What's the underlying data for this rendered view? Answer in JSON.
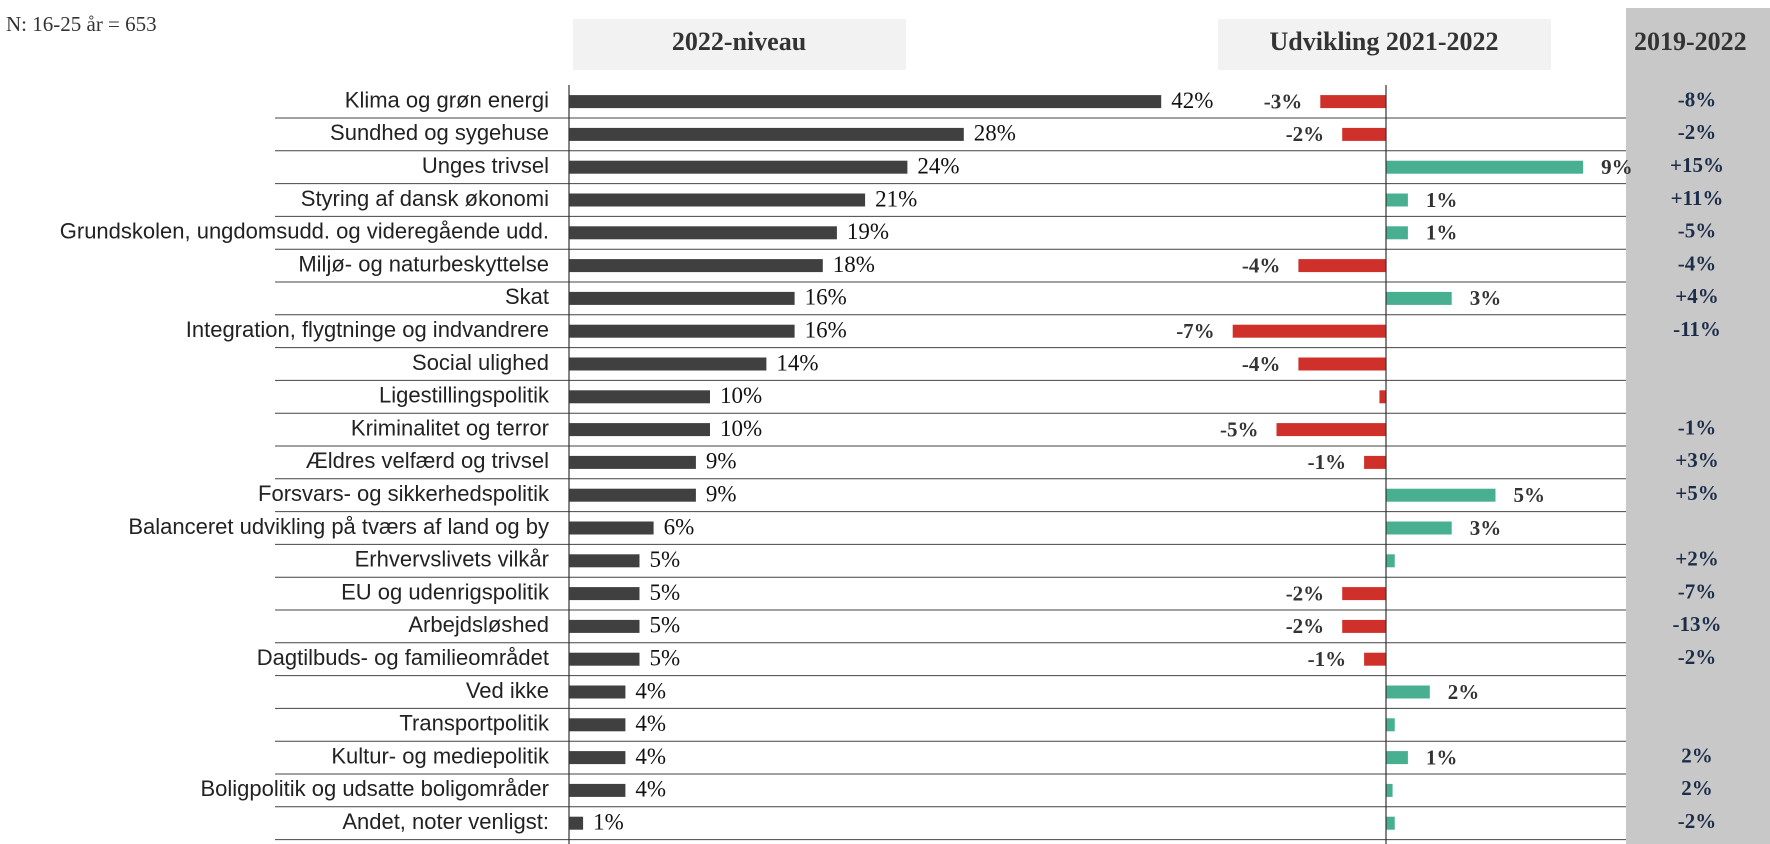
{
  "chart_data": {
    "type": "bar",
    "orientation": "horizontal",
    "subtitle": "N: 16-25 år = 653",
    "categories": [
      "Klima og grøn energi",
      "Sundhed og sygehuse",
      "Unges trivsel",
      "Styring af dansk økonomi",
      "Grundskolen, ungdomsudd. og videregående udd.",
      "Miljø- og naturbeskyttelse",
      "Skat",
      "Integration, flygtninge og indvandrere",
      "Social ulighed",
      "Ligestillingspolitik",
      "Kriminalitet og terror",
      "Ældres velfærd og trivsel",
      "Forsvars- og sikkerhedspolitik",
      "Balanceret udvikling på tværs af land og by",
      "Erhvervslivets vilkår",
      "EU og udenrigspolitik",
      "Arbejdsløshed",
      "Dagtilbuds- og familieområdet",
      "Ved ikke",
      "Transportpolitik",
      "Kultur- og mediepolitik",
      "Boligpolitik og udsatte boligområder",
      "Andet, noter venligst:"
    ],
    "series": [
      {
        "name": "2022-niveau",
        "color": "#404040",
        "values": [
          42,
          28,
          24,
          21,
          19,
          18,
          16,
          16,
          14,
          10,
          10,
          9,
          9,
          6,
          5,
          5,
          5,
          5,
          4,
          4,
          4,
          4,
          1
        ],
        "value_labels": [
          "42%",
          "28%",
          "24%",
          "21%",
          "19%",
          "18%",
          "16%",
          "16%",
          "14%",
          "10%",
          "10%",
          "9%",
          "9%",
          "6%",
          "5%",
          "5%",
          "5%",
          "5%",
          "4%",
          "4%",
          "4%",
          "4%",
          "1%"
        ]
      },
      {
        "name": "Udvikling 2021-2022",
        "color": "#48b090",
        "negative_color": "#d0302a",
        "values": [
          -3,
          -2,
          9,
          1,
          1,
          -4,
          3,
          -7,
          -4,
          -0.3,
          -5,
          -1,
          5,
          3,
          0.4,
          -2,
          -2,
          -1,
          2,
          0.4,
          1,
          0.3,
          0.4
        ],
        "value_labels": [
          "-3%",
          "-2%",
          "9%",
          "1%",
          "1%",
          "-4%",
          "3%",
          "-7%",
          "-4%",
          null,
          "-5%",
          "-1%",
          "5%",
          "3%",
          null,
          "-2%",
          "-2%",
          "-1%",
          "2%",
          null,
          "1%",
          null,
          null
        ]
      },
      {
        "name": "2019-2022",
        "display": "text",
        "values": [
          -8,
          -2,
          15,
          11,
          -5,
          -4,
          4,
          -11,
          null,
          null,
          -1,
          3,
          5,
          null,
          2,
          -7,
          -13,
          -2,
          null,
          null,
          2,
          2,
          -2
        ],
        "value_labels": [
          "-8%",
          "-2%",
          "+15%",
          "+11%",
          "-5%",
          "-4%",
          "+4%",
          "-11%",
          null,
          null,
          "-1%",
          "+3%",
          "+5%",
          null,
          "+2%",
          "-7%",
          "-13%",
          "-2%",
          null,
          null,
          "2%",
          "2%",
          "-2%"
        ]
      }
    ]
  }
}
